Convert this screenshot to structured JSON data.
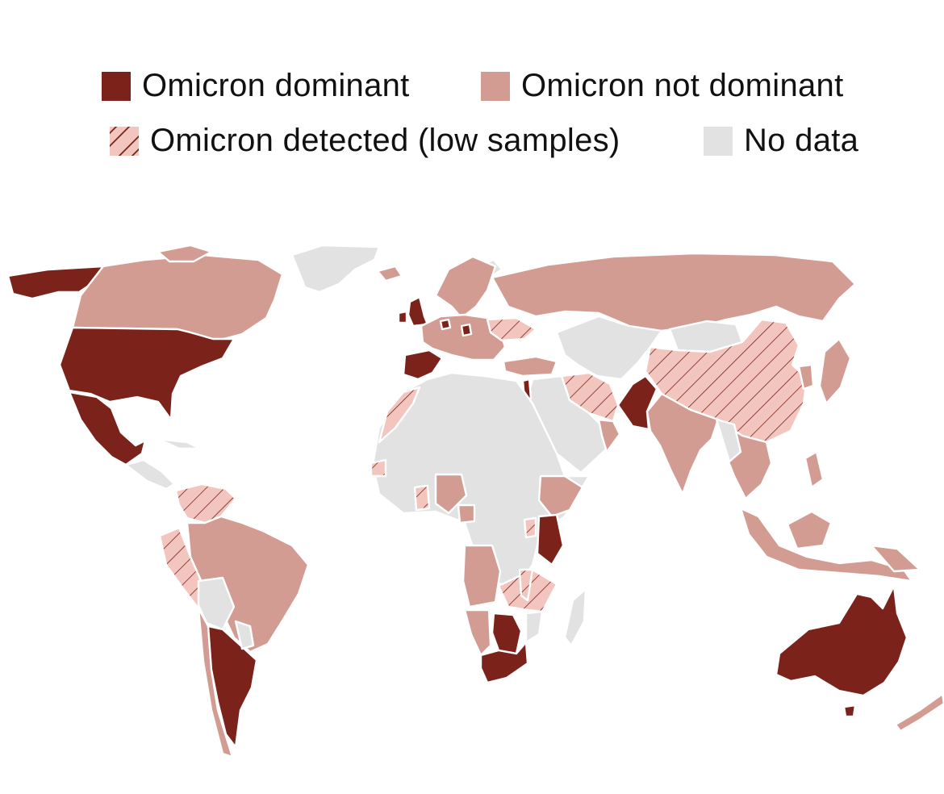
{
  "colors": {
    "dominant": "#7b221b",
    "not_dominant": "#d39c92",
    "detected_fill": "#f2c6be",
    "detected_hatch": "#7b221b",
    "no_data": "#e2e2e2",
    "border": "#ffffff"
  },
  "legend": {
    "items": [
      {
        "key": "dominant",
        "label": "Omicron dominant",
        "swatch": "solid-dark"
      },
      {
        "key": "not_dominant",
        "label": "Omicron not dominant",
        "swatch": "solid-light"
      },
      {
        "key": "detected",
        "label": "Omicron detected (low samples)",
        "swatch": "hatched"
      },
      {
        "key": "no_data",
        "label": "No data",
        "swatch": "solid-grey"
      }
    ]
  }
}
